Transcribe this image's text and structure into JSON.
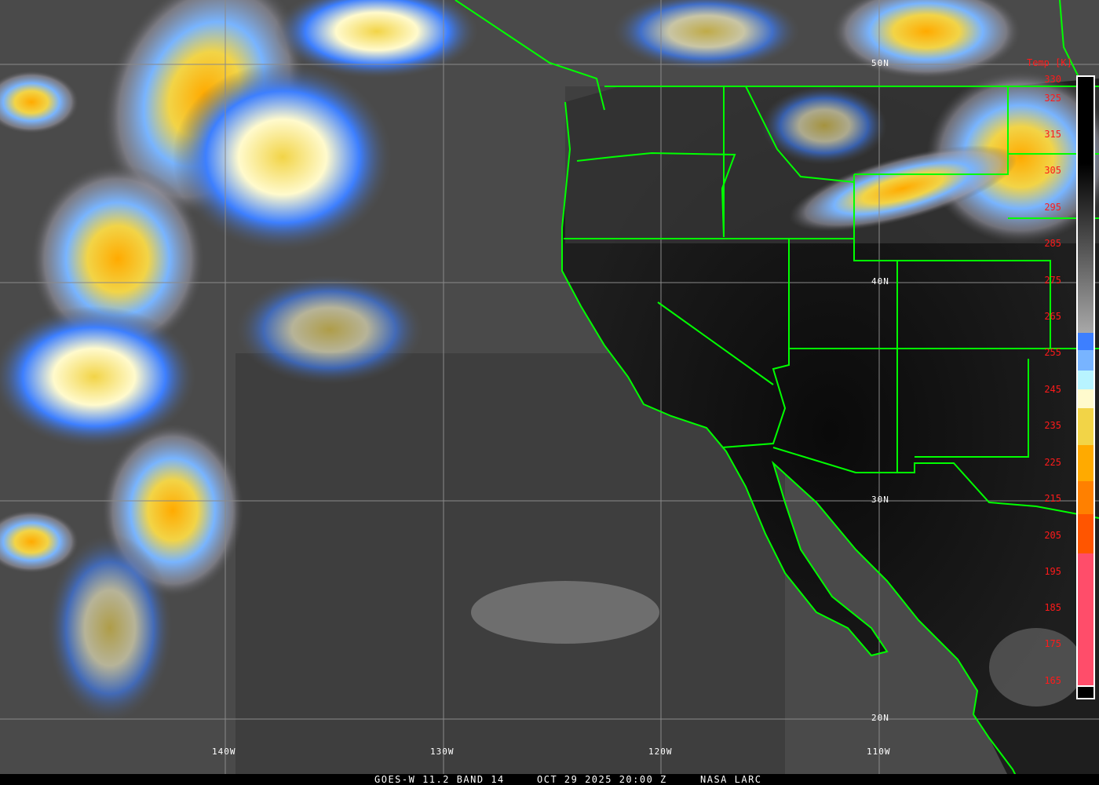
{
  "caption": {
    "satellite": "GOES-W 11.2 BAND 14",
    "datetime": "OCT 29 2025 20:00 Z",
    "credit": "NASA LARC"
  },
  "grid": {
    "longitudes": [
      "140W",
      "130W",
      "120W",
      "110W"
    ],
    "latitudes": [
      "50N",
      "40N",
      "30N",
      "20N"
    ]
  },
  "colorbar": {
    "title": "Temp [K]",
    "labels": [
      "330",
      "325",
      "315",
      "305",
      "295",
      "285",
      "275",
      "265",
      "255",
      "245",
      "235",
      "225",
      "215",
      "205",
      "195",
      "185",
      "175",
      "165"
    ],
    "colors": {
      "cold_blue": "#3d7fff",
      "light_blue": "#78b4ff",
      "cyan": "#b8f4ff",
      "cream": "#fffacd",
      "yellow": "#f2d447",
      "orange": "#ffaa00",
      "dark_orange": "#ff8000",
      "red_orange": "#ff5500",
      "pink": "#ff4d6a",
      "border_lines": "#00ff00",
      "label_text": "#ff1a1a"
    }
  }
}
